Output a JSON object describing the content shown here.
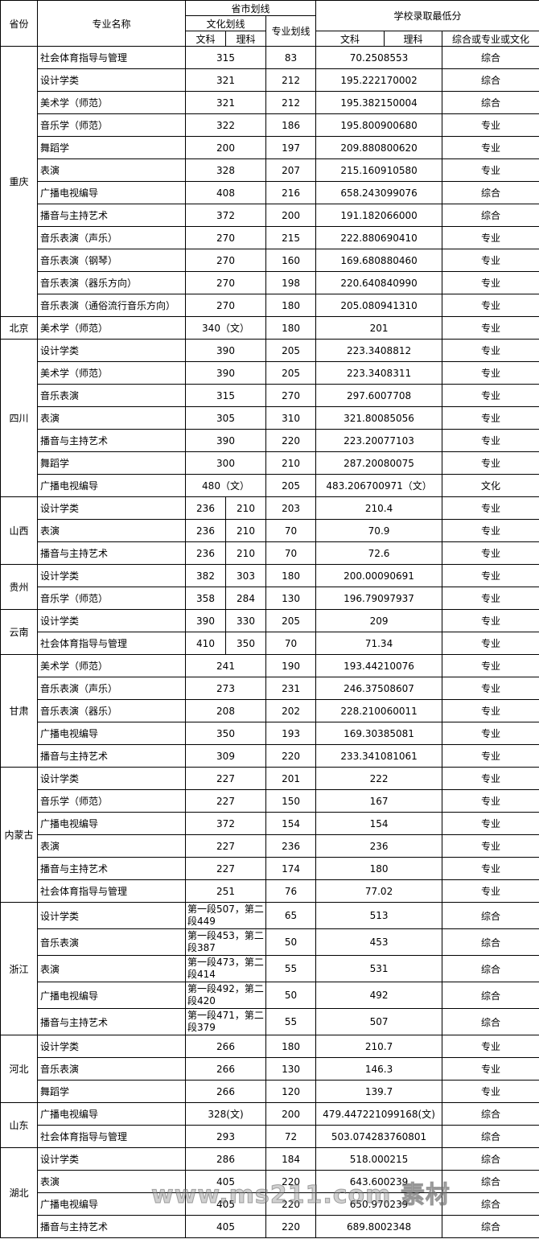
{
  "header": {
    "province": "省份",
    "major": "专业名称",
    "provincial_line": "省市划线",
    "culture_line": "文化划线",
    "arts": "文科",
    "science": "理科",
    "major_line": "专业划线",
    "school_min": "学校录取最低分",
    "school_arts": "文科",
    "school_science": "理科",
    "type": "综合或专业或文化"
  },
  "groups": [
    {
      "province": "重庆",
      "rows": [
        {
          "name": "社会体育指导与管理",
          "wen": "315",
          "major": "83",
          "score": "70.2508553",
          "type": "综合"
        },
        {
          "name": "设计学类",
          "wen": "321",
          "major": "212",
          "score": "195.222170002",
          "type": "综合"
        },
        {
          "name": "美术学（师范）",
          "wen": "321",
          "major": "212",
          "score": "195.382150004",
          "type": "综合"
        },
        {
          "name": "音乐学（师范）",
          "wen": "322",
          "major": "186",
          "score": "195.800900680",
          "type": "专业"
        },
        {
          "name": "舞蹈学",
          "wen": "200",
          "major": "197",
          "score": "209.880800620",
          "type": "专业"
        },
        {
          "name": "表演",
          "wen": "328",
          "major": "207",
          "score": "215.160910580",
          "type": "专业"
        },
        {
          "name": "广播电视编导",
          "wen": "408",
          "major": "216",
          "score": "658.243099076",
          "type": "综合"
        },
        {
          "name": "播音与主持艺术",
          "wen": "372",
          "major": "200",
          "score": "191.182066000",
          "type": "综合"
        },
        {
          "name": "音乐表演（声乐）",
          "wen": "270",
          "major": "215",
          "score": "222.880690410",
          "type": "专业"
        },
        {
          "name": "音乐表演（钢琴）",
          "wen": "270",
          "major": "160",
          "score": "169.680880460",
          "type": "专业"
        },
        {
          "name": "音乐表演（器乐方向）",
          "wen": "270",
          "major": "198",
          "score": "220.640840990",
          "type": "专业"
        },
        {
          "name": "音乐表演（通俗流行音乐方向）",
          "wen": "270",
          "major": "180",
          "score": "205.080941310",
          "type": "专业"
        }
      ]
    },
    {
      "province": "北京",
      "rows": [
        {
          "name": "美术学（师范）",
          "wen": "340（文）",
          "major": "180",
          "score": "201",
          "type": "专业"
        }
      ]
    },
    {
      "province": "四川",
      "rows": [
        {
          "name": "设计学类",
          "wen": "390",
          "major": "205",
          "score": "223.3408812",
          "type": "专业"
        },
        {
          "name": "美术学（师范）",
          "wen": "390",
          "major": "205",
          "score": "223.3408311",
          "type": "专业"
        },
        {
          "name": "音乐表演",
          "wen": "315",
          "major": "270",
          "score": "297.6007708",
          "type": "专业"
        },
        {
          "name": "表演",
          "wen": "305",
          "major": "310",
          "score": "321.80085056",
          "type": "专业"
        },
        {
          "name": "播音与主持艺术",
          "wen": "390",
          "major": "220",
          "score": "223.20077103",
          "type": "专业"
        },
        {
          "name": "舞蹈学",
          "wen": "300",
          "major": "210",
          "score": "287.20080075",
          "type": "专业"
        },
        {
          "name": "广播电视编导",
          "wen": "480（文）",
          "major": "205",
          "score": "483.206700971（文）",
          "type": "文化"
        }
      ]
    },
    {
      "province": "山西",
      "rows": [
        {
          "name": "设计学类",
          "wen": "236",
          "li": "210",
          "major": "203",
          "score": "210.4",
          "type": "专业"
        },
        {
          "name": "表演",
          "wen": "236",
          "li": "210",
          "major": "70",
          "score": "70.9",
          "type": "专业"
        },
        {
          "name": "播音与主持艺术",
          "wen": "236",
          "li": "210",
          "major": "70",
          "score": "72.6",
          "type": "专业"
        }
      ]
    },
    {
      "province": "贵州",
      "rows": [
        {
          "name": " 设计学类",
          "wen": "382",
          "li": "303",
          "major": "180",
          "score": "200.00090691",
          "type": "专业"
        },
        {
          "name": "音乐学（师范）",
          "wen": "358",
          "li": "284",
          "major": "130",
          "score": "196.79097937",
          "type": "专业"
        }
      ]
    },
    {
      "province": "云南",
      "rows": [
        {
          "name": "设计学类",
          "wen": "390",
          "li": "330",
          "major": "205",
          "score": "209",
          "type": "专业"
        },
        {
          "name": "社会体育指导与管理",
          "wen": "410",
          "li": "350",
          "major": "70",
          "score": "71.34",
          "type": "专业"
        }
      ]
    },
    {
      "province": "甘肃",
      "rows": [
        {
          "name": "美术学（师范）",
          "wen": "241",
          "major": "190",
          "score": "193.44210076",
          "type": "专业"
        },
        {
          "name": "音乐表演（声乐）",
          "wen": "273",
          "major": "231",
          "score": "246.37508607",
          "type": "专业"
        },
        {
          "name": "音乐表演（器乐）",
          "wen": "208",
          "major": "202",
          "score": "228.210060011",
          "type": "专业"
        },
        {
          "name": "广播电视编导",
          "wen": "350",
          "major": "193",
          "score": "169.30385081",
          "type": "专业"
        },
        {
          "name": "播音与主持艺术",
          "wen": "309",
          "major": "220",
          "score": "233.341081061",
          "type": "专业"
        }
      ]
    },
    {
      "province": "内蒙古",
      "rows": [
        {
          "name": "设计学类",
          "wen": "227",
          "major": "201",
          "score": "222",
          "type": "专业"
        },
        {
          "name": "音乐学（师范）",
          "wen": "227",
          "major": "150",
          "score": "167",
          "type": "专业"
        },
        {
          "name": "广播电视编导",
          "wen": "372",
          "major": "154",
          "score": "154",
          "type": "专业"
        },
        {
          "name": "表演",
          "wen": "227",
          "major": "236",
          "score": "236",
          "type": "专业"
        },
        {
          "name": "播音与主持艺术",
          "wen": "227",
          "major": "174",
          "score": "180",
          "type": "专业"
        },
        {
          "name": "社会体育指导与管理",
          "wen": "251",
          "major": "76",
          "score": "77.02",
          "type": "专业"
        }
      ]
    },
    {
      "province": "浙江",
      "tall": true,
      "rows": [
        {
          "name": "设计学类",
          "wen": "第一段507，第二段449",
          "major": "65",
          "score": "513",
          "type": "综合"
        },
        {
          "name": "音乐表演",
          "wen": "第一段453，第二段387",
          "major": "50",
          "score": "453",
          "type": "综合"
        },
        {
          "name": "表演",
          "wen": "第一段473，第二段414",
          "major": "55",
          "score": "531",
          "type": "综合"
        },
        {
          "name": "广播电视编导",
          "wen": "第一段492，第二段420",
          "major": "50",
          "score": "492",
          "type": "综合"
        },
        {
          "name": "播音与主持艺术",
          "wen": "第一段471，第二段379",
          "major": "55",
          "score": "507",
          "type": "综合"
        }
      ]
    },
    {
      "province": "河北",
      "rows": [
        {
          "name": "设计学类",
          "wen": "266",
          "major": "180",
          "score": "210.7",
          "type": "专业"
        },
        {
          "name": "音乐表演",
          "wen": "266",
          "major": "130",
          "score": "146.3",
          "type": "专业"
        },
        {
          "name": "舞蹈学",
          "wen": "266",
          "major": "120",
          "score": "139.7",
          "type": "专业"
        }
      ]
    },
    {
      "province": "山东",
      "rows": [
        {
          "name": "广播电视编导",
          "wen": "328(文)",
          "major": "200",
          "score": "479.447221099168(文)",
          "type": "综合"
        },
        {
          "name": "社会体育指导与管理",
          "wen": "293",
          "major": "72",
          "score": "503.074283760801",
          "type": "综合"
        }
      ]
    },
    {
      "province": "湖北",
      "rows": [
        {
          "name": "设计学类",
          "wen": "286",
          "major": "184",
          "score": "518.000215",
          "type": "综合"
        },
        {
          "name": "表演",
          "wen": "405",
          "major": "220",
          "score": "643.600239",
          "type": "综合"
        },
        {
          "name": "广播电视编导",
          "wen": "405",
          "major": "220",
          "score": "650.970239",
          "type": "综合"
        },
        {
          "name": "播音与主持艺术",
          "wen": "405",
          "major": "220",
          "score": "689.8002348",
          "type": "综合"
        }
      ]
    }
  ],
  "watermark": "www.ms211.com 素材"
}
